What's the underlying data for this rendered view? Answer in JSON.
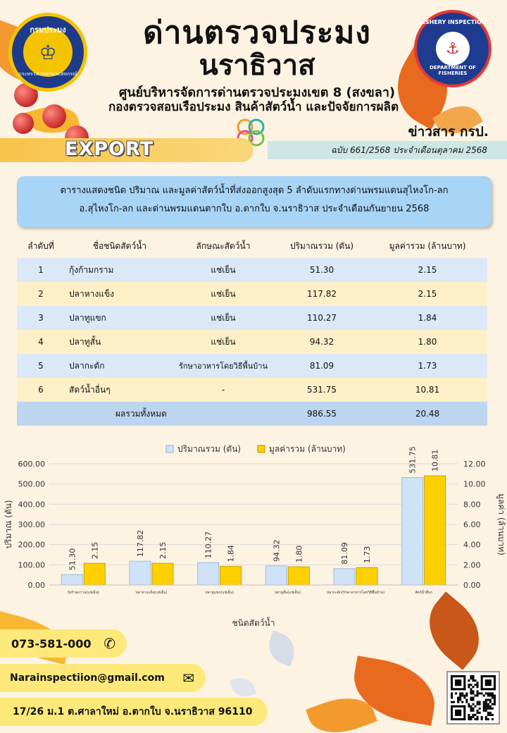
{
  "header": {
    "logo_left_top": "กรมประมง",
    "logo_left_bottom": "กระทรวงเกษตรและสหกรณ์",
    "logo_right_top": "FISHERY INSPECTION",
    "logo_right_bottom": "DEPARTMENT OF FISHERIES",
    "title_line1": "ด่านตรวจประมง",
    "title_line2": "นราธิวาส",
    "subtitle_line1": "ศูนย์บริหารจัดการด่านตรวจประมงเขต 8 (สงขลา)",
    "subtitle_line2": "กองตรวจสอบเรือประมง สินค้าสัตว์น้ำ และปัจจัยการผลิต",
    "news_label": "ข่าวสาร กรป.",
    "export_label": "EXPORT",
    "issue": "ฉบับ 661/2568 ประจำเดือนตุลาคม  2568"
  },
  "caption": {
    "line1": "ตารางแสดงชนิด ปริมาณ และมูลค่าสัตว์น้ำที่ส่งออกสูงสุด 5 ลำดับแรกทางด่านพรมแดนสุไหงโก-ลก",
    "line2": "อ.สุไหงโก-ลก และด่านพรมแดนตากใบ  อ.ตากใบ  จ.นราธิวาส  ประจำเดือนกันยายน  2568"
  },
  "table": {
    "headers": [
      "ลำดับที่",
      "ชื่อชนิดสัตว์น้ำ",
      "ลักษณะสัตว์น้ำ",
      "ปริมาณรวม (ตัน)",
      "มูลค่ารวม (ล้านบาท)"
    ],
    "rows": [
      {
        "rank": "1",
        "name": "กุ้งก้ามกราม",
        "type": "แช่เย็น",
        "qty": "51.30",
        "value": "2.15"
      },
      {
        "rank": "2",
        "name": "ปลาหางแข็ง",
        "type": "แช่เย็น",
        "qty": "117.82",
        "value": "2.15"
      },
      {
        "rank": "3",
        "name": "ปลาทูแขก",
        "type": "แช่เย็น",
        "qty": "110.27",
        "value": "1.84"
      },
      {
        "rank": "4",
        "name": "ปลาทูสั้น",
        "type": "แช่เย็น",
        "qty": "94.32",
        "value": "1.80"
      },
      {
        "rank": "5",
        "name": "ปลากะตัก",
        "type": "รักษาอาหารโดยวิธีพื้นบ้าน",
        "qty": "81.09",
        "value": "1.73"
      },
      {
        "rank": "6",
        "name": "สัตว์น้ำอื่นๆ",
        "type": "-",
        "qty": "531.75",
        "value": "10.81"
      }
    ],
    "total_label": "ผลรวมทั้งหมด",
    "total_qty": "986.55",
    "total_value": "20.48"
  },
  "chart_data": {
    "type": "bar",
    "categories": [
      "กุ้งก้ามกราม(แช่เย็น)",
      "ปลาหางแข็ง(แช่เย็น)",
      "ปลาทูแขก(แช่เย็น)",
      "ปลาทูสั้น(แช่เย็น)",
      "ปลากะตัก(รักษาอาหารโดยวิธีพื้นบ้าน)",
      "สัตว์น้ำอื่นๆ"
    ],
    "series": [
      {
        "name": "ปริมาณรวม (ตัน)",
        "axis": "left",
        "color": "#cfe2f7",
        "values": [
          51.3,
          117.82,
          110.27,
          94.32,
          81.09,
          531.75
        ],
        "labels": [
          "51.30",
          "117.82",
          "110.27",
          "94.32",
          "81.09",
          "531.75"
        ]
      },
      {
        "name": "มูลค่ารวม (ล้านบาท)",
        "axis": "right",
        "color": "#ffd000",
        "values": [
          2.15,
          2.15,
          1.84,
          1.8,
          1.73,
          10.81
        ],
        "labels": [
          "2.15",
          "2.15",
          "1.84",
          "1.80",
          "1.73",
          "10.81"
        ]
      }
    ],
    "xlabel": "ชนิดสัตว์น้ำ",
    "ylabel_left": "ปริมาณ (ตัน)",
    "ylabel_right": "มูลค่า (ล้านบาท)",
    "ylim_left": [
      0,
      600
    ],
    "ylim_right": [
      0,
      12
    ],
    "yticks_left": [
      "0.00",
      "100.00",
      "200.00",
      "300.00",
      "400.00",
      "500.00",
      "600.00"
    ],
    "yticks_right": [
      "0.00",
      "2.00",
      "4.00",
      "6.00",
      "8.00",
      "10.00",
      "12.00"
    ],
    "legend": "top",
    "grid": true
  },
  "contact": {
    "phone": "073-581-000",
    "email": "Narainspectiion@gmail.com",
    "address": "17/26 ม.1 ต.ศาลาใหม่ อ.ตากใบ จ.นราธิวาส 96110"
  },
  "icons": {
    "phone": "phone-icon",
    "mail": "mail-icon",
    "qr": "qr-code"
  }
}
